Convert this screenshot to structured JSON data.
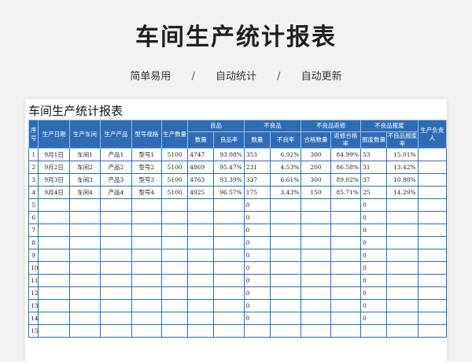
{
  "banner": {
    "title": "车间生产统计报表",
    "tags": [
      "简单易用",
      "自动统计",
      "自动更新"
    ],
    "separator": "/"
  },
  "sheet": {
    "title": "车间生产统计报表",
    "header_top": {
      "seq": "序号",
      "date": "生产日期",
      "workshop": "生产车间",
      "product": "生产产品",
      "model": "型号规格",
      "qty": "生产数量",
      "good": "良品",
      "bad": "不良品",
      "rework": "不良品返修",
      "scrap": "不良品报废",
      "owner": "生产负责人"
    },
    "header_sub": {
      "good_count": "数量",
      "good_rate": "良品率",
      "bad_count": "数量",
      "bad_rate": "不良率",
      "rework_pass": "合格数量",
      "rework_rate": "返修合格率",
      "scrap_count": "报废数量",
      "scrap_rate": "不良品报废率"
    },
    "rows": [
      {
        "seq": "1",
        "date": "9月1日",
        "workshop": "车间1",
        "product": "产品1",
        "model": "型号1",
        "qty": "5100",
        "good": "4747",
        "good_rate": "93.08%",
        "bad": "353",
        "bad_rate": "6.92%",
        "rework": "300",
        "rework_rate": "84.99%",
        "scrap": "53",
        "scrap_rate": "15.01%",
        "owner": ""
      },
      {
        "seq": "2",
        "date": "9月2日",
        "workshop": "车间2",
        "product": "产品2",
        "model": "型号2",
        "qty": "5100",
        "good": "4869",
        "good_rate": "95.47%",
        "bad": "231",
        "bad_rate": "4.53%",
        "rework": "200",
        "rework_rate": "86.58%",
        "scrap": "31",
        "scrap_rate": "13.42%",
        "owner": ""
      },
      {
        "seq": "3",
        "date": "9月3日",
        "workshop": "车间3",
        "product": "产品3",
        "model": "型号3",
        "qty": "5100",
        "good": "4763",
        "good_rate": "93.39%",
        "bad": "337",
        "bad_rate": "6.61%",
        "rework": "300",
        "rework_rate": "89.02%",
        "scrap": "37",
        "scrap_rate": "10.98%",
        "owner": ""
      },
      {
        "seq": "4",
        "date": "9月4日",
        "workshop": "车间4",
        "product": "产品4",
        "model": "型号4",
        "qty": "5100",
        "good": "4925",
        "good_rate": "96.57%",
        "bad": "175",
        "bad_rate": "3.43%",
        "rework": "150",
        "rework_rate": "85.71%",
        "scrap": "25",
        "scrap_rate": "14.29%",
        "owner": ""
      },
      {
        "seq": "5",
        "date": "",
        "workshop": "",
        "product": "",
        "model": "",
        "qty": "",
        "good": "",
        "good_rate": "",
        "bad": "0",
        "bad_rate": "",
        "rework": "",
        "rework_rate": "",
        "scrap": "0",
        "scrap_rate": "",
        "owner": ""
      },
      {
        "seq": "6",
        "date": "",
        "workshop": "",
        "product": "",
        "model": "",
        "qty": "",
        "good": "",
        "good_rate": "",
        "bad": "0",
        "bad_rate": "",
        "rework": "",
        "rework_rate": "",
        "scrap": "0",
        "scrap_rate": "",
        "owner": ""
      },
      {
        "seq": "7",
        "date": "",
        "workshop": "",
        "product": "",
        "model": "",
        "qty": "",
        "good": "",
        "good_rate": "",
        "bad": "0",
        "bad_rate": "",
        "rework": "",
        "rework_rate": "",
        "scrap": "0",
        "scrap_rate": "",
        "owner": ""
      },
      {
        "seq": "8",
        "date": "",
        "workshop": "",
        "product": "",
        "model": "",
        "qty": "",
        "good": "",
        "good_rate": "",
        "bad": "0",
        "bad_rate": "",
        "rework": "",
        "rework_rate": "",
        "scrap": "0",
        "scrap_rate": "",
        "owner": ""
      },
      {
        "seq": "9",
        "date": "",
        "workshop": "",
        "product": "",
        "model": "",
        "qty": "",
        "good": "",
        "good_rate": "",
        "bad": "0",
        "bad_rate": "",
        "rework": "",
        "rework_rate": "",
        "scrap": "0",
        "scrap_rate": "",
        "owner": ""
      },
      {
        "seq": "10",
        "date": "",
        "workshop": "",
        "product": "",
        "model": "",
        "qty": "",
        "good": "",
        "good_rate": "",
        "bad": "0",
        "bad_rate": "",
        "rework": "",
        "rework_rate": "",
        "scrap": "0",
        "scrap_rate": "",
        "owner": ""
      },
      {
        "seq": "11",
        "date": "",
        "workshop": "",
        "product": "",
        "model": "",
        "qty": "",
        "good": "",
        "good_rate": "",
        "bad": "0",
        "bad_rate": "",
        "rework": "",
        "rework_rate": "",
        "scrap": "0",
        "scrap_rate": "",
        "owner": ""
      },
      {
        "seq": "12",
        "date": "",
        "workshop": "",
        "product": "",
        "model": "",
        "qty": "",
        "good": "",
        "good_rate": "",
        "bad": "0",
        "bad_rate": "",
        "rework": "",
        "rework_rate": "",
        "scrap": "0",
        "scrap_rate": "",
        "owner": ""
      },
      {
        "seq": "13",
        "date": "",
        "workshop": "",
        "product": "",
        "model": "",
        "qty": "",
        "good": "",
        "good_rate": "",
        "bad": "0",
        "bad_rate": "",
        "rework": "",
        "rework_rate": "",
        "scrap": "0",
        "scrap_rate": "",
        "owner": ""
      },
      {
        "seq": "14",
        "date": "",
        "workshop": "",
        "product": "",
        "model": "",
        "qty": "",
        "good": "",
        "good_rate": "",
        "bad": "0",
        "bad_rate": "",
        "rework": "",
        "rework_rate": "",
        "scrap": "0",
        "scrap_rate": "",
        "owner": ""
      },
      {
        "seq": "15",
        "date": "",
        "workshop": "",
        "product": "",
        "model": "",
        "qty": "",
        "good": "",
        "good_rate": "",
        "bad": "",
        "bad_rate": "",
        "rework": "",
        "rework_rate": "",
        "scrap": "",
        "scrap_rate": "",
        "owner": ""
      }
    ]
  }
}
